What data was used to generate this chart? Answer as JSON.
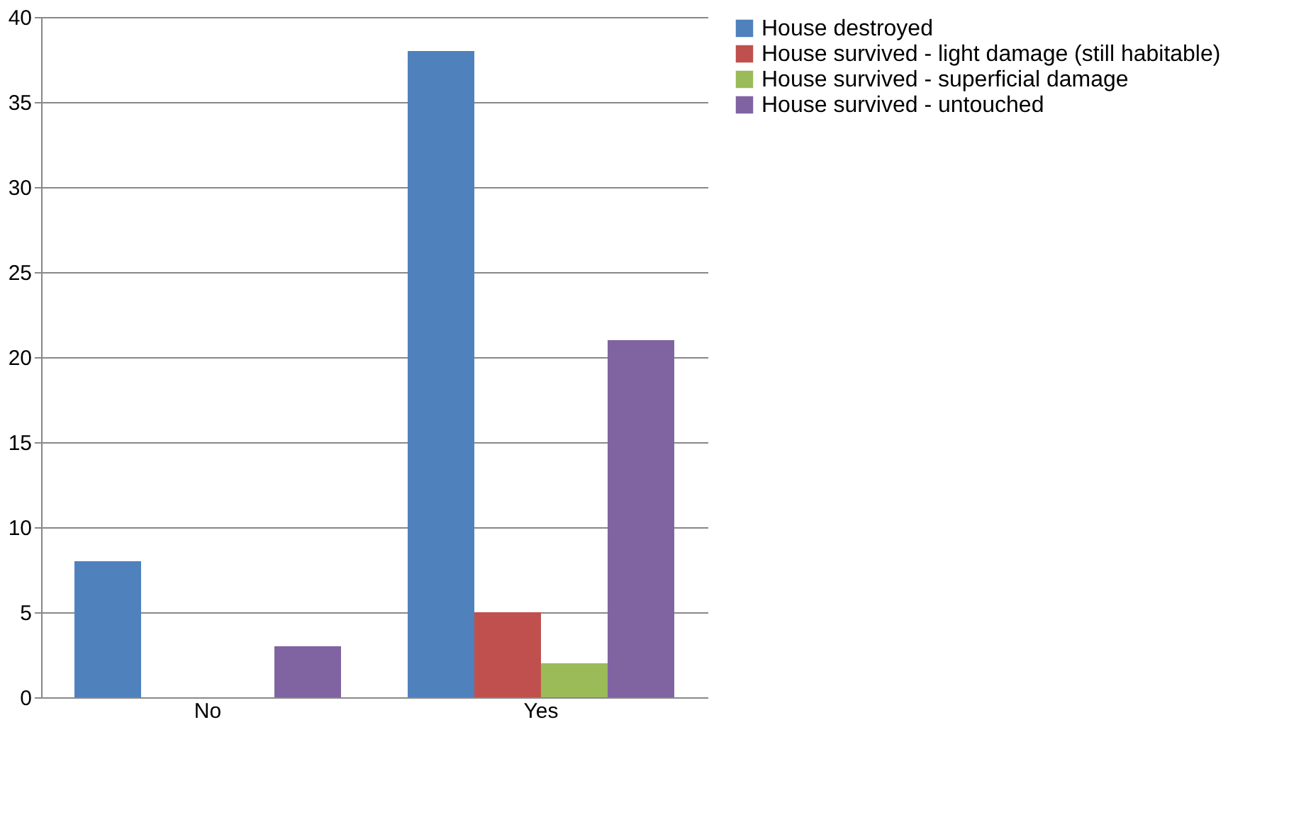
{
  "chart_data": {
    "type": "bar",
    "categories": [
      "No",
      "Yes"
    ],
    "series": [
      {
        "name": "House destroyed",
        "color": "#4f81bd",
        "values": [
          8,
          38
        ]
      },
      {
        "name": "House survived - light damage (still habitable)",
        "color": "#c0504d",
        "values": [
          0,
          5
        ]
      },
      {
        "name": "House survived - superficial damage",
        "color": "#9bbb59",
        "values": [
          0,
          2
        ]
      },
      {
        "name": "House survived - untouched",
        "color": "#8064a2",
        "values": [
          3,
          21
        ]
      }
    ],
    "ylim": [
      0,
      40
    ],
    "yticks": [
      0,
      5,
      10,
      15,
      20,
      25,
      30,
      35,
      40
    ],
    "grid": "y",
    "legend": "right"
  }
}
